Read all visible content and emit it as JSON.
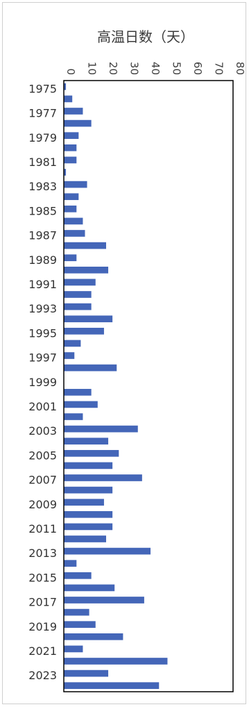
{
  "chart_data": {
    "type": "bar",
    "orientation": "horizontal",
    "title": "",
    "xlabel": "高温日数（天）",
    "ylabel": "",
    "xlim": [
      0,
      80
    ],
    "x_ticks": [
      "0",
      "10",
      "20",
      "30",
      "40",
      "50",
      "60",
      "70",
      "80"
    ],
    "grid": false,
    "legend": "none",
    "bar_color": "#4466b8",
    "categories": [
      "1975",
      "1976",
      "1977",
      "1978",
      "1979",
      "1980",
      "1981",
      "1982",
      "1983",
      "1984",
      "1985",
      "1986",
      "1987",
      "1988",
      "1989",
      "1990",
      "1991",
      "1992",
      "1993",
      "1994",
      "1995",
      "1996",
      "1997",
      "1998",
      "1999",
      "2000",
      "2001",
      "2002",
      "2003",
      "2004",
      "2005",
      "2006",
      "2007",
      "2008",
      "2009",
      "2010",
      "2011",
      "2012",
      "2013",
      "2014",
      "2015",
      "2016",
      "2017",
      "2018",
      "2019",
      "2020",
      "2021",
      "2022",
      "2023",
      "2024"
    ],
    "y_tick_labels": [
      "1975",
      "1977",
      "1979",
      "1981",
      "1983",
      "1985",
      "1987",
      "1989",
      "1991",
      "1993",
      "1995",
      "1997",
      "1999",
      "2001",
      "2003",
      "2005",
      "2007",
      "2009",
      "2011",
      "2013",
      "2015",
      "2017",
      "2019",
      "2021",
      "2023"
    ],
    "values": [
      1,
      4,
      9,
      13,
      7,
      6,
      6,
      1,
      11,
      7,
      6,
      9,
      10,
      20,
      6,
      21,
      15,
      13,
      13,
      23,
      19,
      8,
      5,
      25,
      0,
      13,
      16,
      9,
      35,
      21,
      26,
      23,
      37,
      23,
      19,
      23,
      23,
      20,
      41,
      6,
      13,
      24,
      38,
      12,
      15,
      28,
      9,
      49,
      21,
      45
    ]
  }
}
